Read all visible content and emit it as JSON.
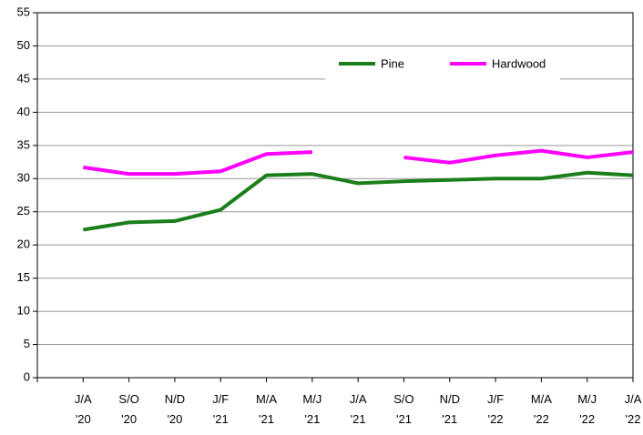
{
  "chart_data": {
    "type": "line",
    "categories": [
      "J/A '20",
      "S/O '20",
      "N/D '20",
      "J/F '21",
      "M/A '21",
      "M/J '21",
      "J/A '21",
      "S/O '21",
      "N/D '21",
      "J/F '22",
      "M/A '22",
      "M/J '22",
      "J/A '22"
    ],
    "series": [
      {
        "name": "Pine",
        "color": "#1a7f1a",
        "values": [
          22.3,
          23.4,
          23.6,
          25.3,
          30.5,
          30.7,
          29.3,
          29.6,
          29.8,
          30.0,
          30.0,
          30.9,
          30.5
        ]
      },
      {
        "name": "Hardwood",
        "color": "#ff00ff",
        "values": [
          31.7,
          30.7,
          30.7,
          31.1,
          33.7,
          34.0,
          null,
          33.2,
          32.4,
          33.5,
          34.2,
          33.2,
          34.0
        ]
      }
    ],
    "ylim": [
      0,
      55
    ],
    "yticks": [
      0,
      5,
      10,
      15,
      20,
      25,
      30,
      35,
      40,
      45,
      50,
      55
    ],
    "grid": true,
    "legend": "top"
  }
}
